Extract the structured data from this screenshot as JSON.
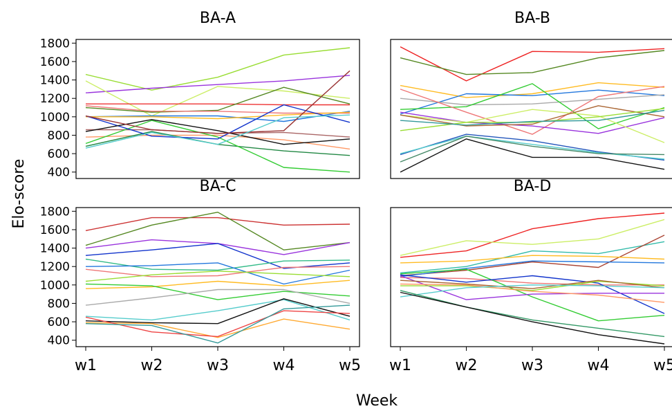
{
  "figure": {
    "xlabel": "Week",
    "ylabel": "Elo-score"
  },
  "chart_data": [
    {
      "type": "line",
      "title": "BA-A",
      "x": [
        "w1",
        "w2",
        "w3",
        "w4",
        "w5"
      ],
      "ylim": [
        330,
        1840
      ],
      "yticks": [
        400,
        600,
        800,
        1000,
        1200,
        1400,
        1600,
        1800
      ],
      "show_yticks": true,
      "show_xticks": false,
      "series": [
        {
          "color": "#99dd33",
          "values": [
            1460,
            1290,
            1430,
            1670,
            1750
          ]
        },
        {
          "color": "#9933dd",
          "values": [
            1260,
            1310,
            1350,
            1390,
            1450
          ]
        },
        {
          "color": "#ccee66",
          "values": [
            1390,
            1010,
            1330,
            1280,
            1200
          ]
        },
        {
          "color": "#ee3333",
          "values": [
            1140,
            1140,
            1140,
            1130,
            1130
          ]
        },
        {
          "color": "#558822",
          "values": [
            1100,
            1050,
            1070,
            1320,
            1140
          ]
        },
        {
          "color": "#2277dd",
          "values": [
            1000,
            1010,
            1010,
            950,
            1060
          ]
        },
        {
          "color": "#ee7777",
          "values": [
            1120,
            1060,
            1060,
            1040,
            1040
          ]
        },
        {
          "color": "#ffbb22",
          "values": [
            1000,
            1000,
            980,
            1020,
            1050
          ]
        },
        {
          "color": "#aa6666",
          "values": [
            860,
            860,
            820,
            830,
            780
          ]
        },
        {
          "color": "#ff9966",
          "values": [
            780,
            800,
            800,
            750,
            650
          ]
        },
        {
          "color": "#228844",
          "values": [
            680,
            840,
            700,
            630,
            580
          ]
        },
        {
          "color": "#33cc33",
          "values": [
            710,
            960,
            780,
            450,
            400
          ]
        },
        {
          "color": "#1133cc",
          "values": [
            1010,
            790,
            760,
            1130,
            940
          ]
        },
        {
          "color": "#111111",
          "values": [
            840,
            970,
            850,
            700,
            760
          ]
        },
        {
          "color": "#993333",
          "values": [
            1010,
            860,
            820,
            850,
            1500
          ]
        },
        {
          "color": "#55cccc",
          "values": [
            660,
            830,
            700,
            990,
            1020
          ]
        }
      ]
    },
    {
      "type": "line",
      "title": "BA-B",
      "x": [
        "w1",
        "w2",
        "w3",
        "w4",
        "w5"
      ],
      "ylim": [
        330,
        1840
      ],
      "yticks": [
        400,
        600,
        800,
        1000,
        1200,
        1400,
        1600,
        1800
      ],
      "show_yticks": false,
      "show_xticks": false,
      "series": [
        {
          "color": "#ee2222",
          "values": [
            1760,
            1390,
            1710,
            1700,
            1740
          ]
        },
        {
          "color": "#558822",
          "values": [
            1640,
            1460,
            1480,
            1640,
            1720
          ]
        },
        {
          "color": "#ffbb22",
          "values": [
            1340,
            1210,
            1250,
            1370,
            1320
          ]
        },
        {
          "color": "#2277dd",
          "values": [
            1030,
            1250,
            1230,
            1290,
            1230
          ]
        },
        {
          "color": "#aaaaaa",
          "values": [
            1200,
            1130,
            1140,
            1190,
            1240
          ]
        },
        {
          "color": "#33cc33",
          "values": [
            1080,
            1110,
            1360,
            870,
            1100
          ]
        },
        {
          "color": "#ee7777",
          "values": [
            1300,
            1050,
            810,
            1220,
            1330
          ]
        },
        {
          "color": "#9933dd",
          "values": [
            1050,
            940,
            900,
            820,
            990
          ]
        },
        {
          "color": "#ccee66",
          "values": [
            1020,
            940,
            1080,
            1010,
            720
          ]
        },
        {
          "color": "#aa6633",
          "values": [
            1020,
            900,
            920,
            1120,
            1000
          ]
        },
        {
          "color": "#99dd33",
          "values": [
            850,
            940,
            940,
            1000,
            1090
          ]
        },
        {
          "color": "#339999",
          "values": [
            960,
            910,
            950,
            960,
            1070
          ]
        },
        {
          "color": "#2255bb",
          "values": [
            590,
            810,
            740,
            620,
            530
          ]
        },
        {
          "color": "#55cccc",
          "values": [
            600,
            790,
            700,
            610,
            540
          ]
        },
        {
          "color": "#448866",
          "values": [
            510,
            790,
            680,
            600,
            590
          ]
        },
        {
          "color": "#111111",
          "values": [
            400,
            760,
            560,
            560,
            430
          ]
        }
      ]
    },
    {
      "type": "line",
      "title": "BA-C",
      "x": [
        "w1",
        "w2",
        "w3",
        "w4",
        "w5"
      ],
      "ylim": [
        330,
        1840
      ],
      "yticks": [
        400,
        600,
        800,
        1000,
        1200,
        1400,
        1600,
        1800
      ],
      "show_yticks": true,
      "show_xticks": true,
      "series": [
        {
          "color": "#cc3333",
          "values": [
            1590,
            1730,
            1730,
            1650,
            1660
          ]
        },
        {
          "color": "#558822",
          "values": [
            1430,
            1650,
            1790,
            1380,
            1460
          ]
        },
        {
          "color": "#9933dd",
          "values": [
            1400,
            1490,
            1450,
            1330,
            1460
          ]
        },
        {
          "color": "#1133cc",
          "values": [
            1320,
            1380,
            1450,
            1180,
            1240
          ]
        },
        {
          "color": "#33bb88",
          "values": [
            1280,
            1170,
            1160,
            1260,
            1270
          ]
        },
        {
          "color": "#2277dd",
          "values": [
            1200,
            1210,
            1240,
            1010,
            1160
          ]
        },
        {
          "color": "#ee7777",
          "values": [
            1170,
            1090,
            1100,
            1190,
            1200
          ]
        },
        {
          "color": "#99dd33",
          "values": [
            1040,
            1110,
            1150,
            1120,
            1090
          ]
        },
        {
          "color": "#ffbb22",
          "values": [
            960,
            980,
            1040,
            990,
            1050
          ]
        },
        {
          "color": "#33cc33",
          "values": [
            1010,
            990,
            840,
            930,
            880
          ]
        },
        {
          "color": "#aaaaaa",
          "values": [
            780,
            860,
            950,
            950,
            800
          ]
        },
        {
          "color": "#55cccc",
          "values": [
            660,
            620,
            720,
            840,
            620
          ]
        },
        {
          "color": "#111111",
          "values": [
            610,
            590,
            580,
            850,
            660
          ]
        },
        {
          "color": "#ffaa33",
          "values": [
            590,
            580,
            430,
            630,
            520
          ]
        },
        {
          "color": "#ee4444",
          "values": [
            650,
            490,
            440,
            720,
            690
          ]
        },
        {
          "color": "#339999",
          "values": [
            580,
            560,
            370,
            740,
            780
          ]
        }
      ]
    },
    {
      "type": "line",
      "title": "BA-D",
      "x": [
        "w1",
        "w2",
        "w3",
        "w4",
        "w5"
      ],
      "ylim": [
        330,
        1840
      ],
      "yticks": [
        400,
        600,
        800,
        1000,
        1200,
        1400,
        1600,
        1800
      ],
      "show_yticks": false,
      "show_xticks": true,
      "series": [
        {
          "color": "#ee2222",
          "values": [
            1300,
            1370,
            1610,
            1720,
            1780
          ]
        },
        {
          "color": "#ccee66",
          "values": [
            1320,
            1480,
            1440,
            1500,
            1710
          ]
        },
        {
          "color": "#33bbaa",
          "values": [
            1130,
            1200,
            1370,
            1340,
            1470
          ]
        },
        {
          "color": "#aa4433",
          "values": [
            1100,
            1160,
            1250,
            1190,
            1540
          ]
        },
        {
          "color": "#ffbb22",
          "values": [
            1240,
            1260,
            1320,
            1310,
            1280
          ]
        },
        {
          "color": "#2277dd",
          "values": [
            1090,
            1180,
            1260,
            1250,
            1240
          ]
        },
        {
          "color": "#ee7777",
          "values": [
            1080,
            1070,
            1020,
            1000,
            1000
          ]
        },
        {
          "color": "#33cc33",
          "values": [
            1120,
            1170,
            870,
            610,
            670
          ]
        },
        {
          "color": "#1133cc",
          "values": [
            1110,
            1030,
            1100,
            1020,
            690
          ]
        },
        {
          "color": "#9933dd",
          "values": [
            1100,
            840,
            900,
            910,
            910
          ]
        },
        {
          "color": "#99dd33",
          "values": [
            990,
            990,
            940,
            1040,
            990
          ]
        },
        {
          "color": "#aa6633",
          "values": [
            1050,
            1010,
            960,
            1050,
            970
          ]
        },
        {
          "color": "#ff9966",
          "values": [
            1010,
            1000,
            930,
            890,
            810
          ]
        },
        {
          "color": "#55cccc",
          "values": [
            870,
            970,
            1000,
            990,
            970
          ]
        },
        {
          "color": "#339966",
          "values": [
            940,
            760,
            620,
            530,
            440
          ]
        },
        {
          "color": "#111111",
          "values": [
            920,
            760,
            600,
            460,
            360
          ]
        }
      ]
    }
  ]
}
